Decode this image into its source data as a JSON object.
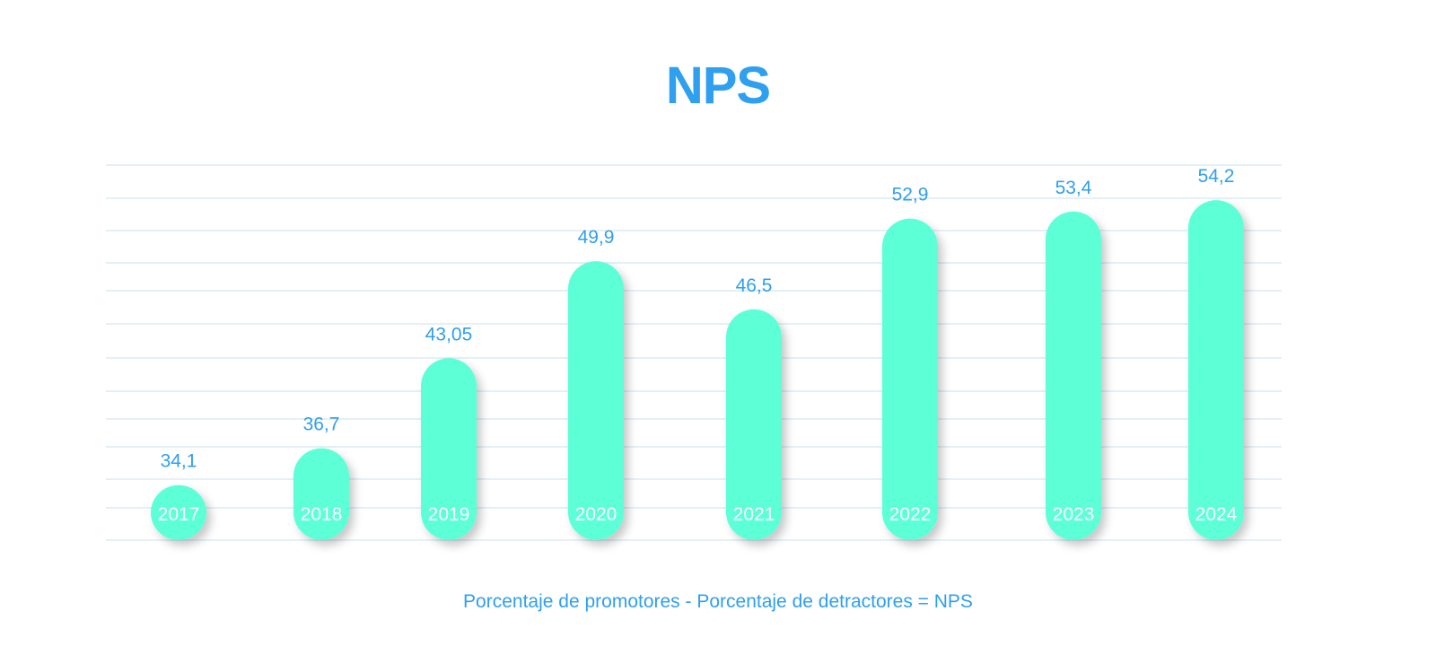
{
  "colors": {
    "accent": "#2f9fef",
    "bar": "#5cffd6",
    "grid": "#c8e2ef",
    "bar_label": "#ffffff"
  },
  "chart_data": {
    "type": "bar",
    "title": "NPS",
    "categories": [
      "2017",
      "2018",
      "2019",
      "2020",
      "2021",
      "2022",
      "2023",
      "2024"
    ],
    "values": [
      34.1,
      36.7,
      43.05,
      49.9,
      46.5,
      52.9,
      53.4,
      54.2
    ],
    "value_labels": [
      "34,1",
      "36,7",
      "43,05",
      "49,9",
      "46,5",
      "52,9",
      "53,4",
      "54,2"
    ],
    "xlabel": "",
    "ylabel": "",
    "grid": true,
    "category_labels_inside_bars": true,
    "footnote": "Porcentaje de promotores - Porcentaje de detractores = NPS"
  }
}
